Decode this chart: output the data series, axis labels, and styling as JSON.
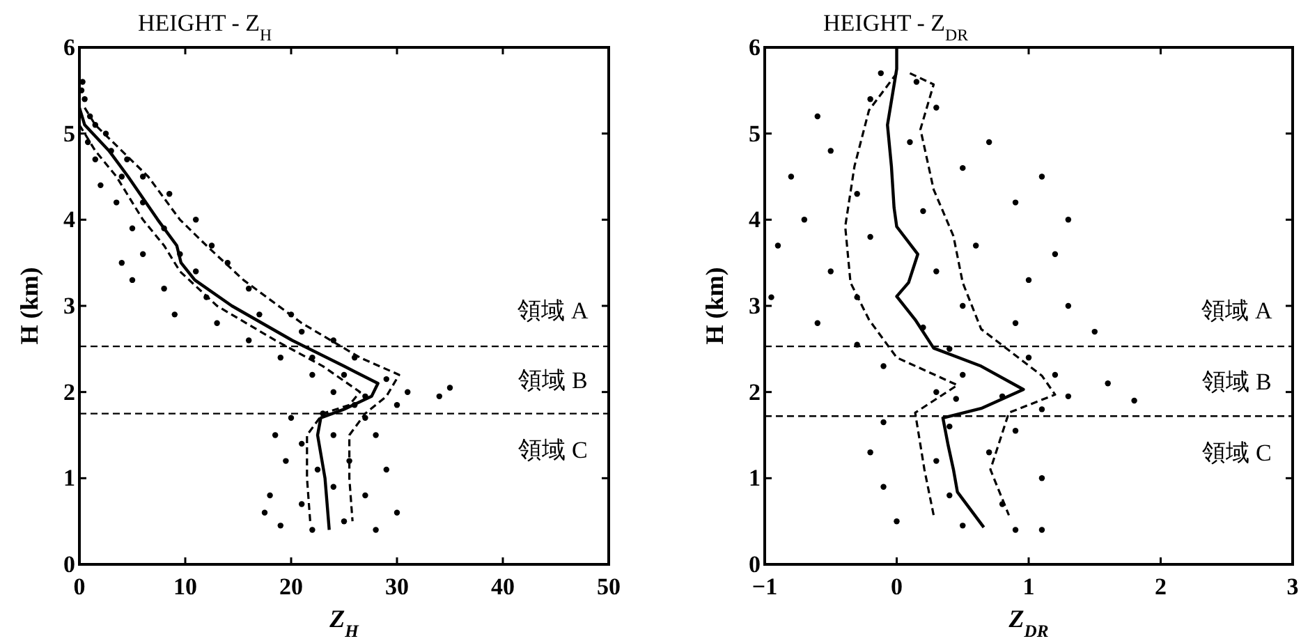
{
  "chart_data": [
    {
      "type": "scatter",
      "title": "HEIGHT - Z$_{H}$",
      "xlabel": "Z$_{H}$",
      "ylabel": "H (km)",
      "xlim": [
        0,
        50
      ],
      "ylim": [
        0,
        6
      ],
      "xticks": [
        0,
        10,
        20,
        30,
        40,
        50
      ],
      "yticks": [
        0,
        1,
        2,
        3,
        4,
        5,
        6
      ],
      "grid": false,
      "ref_lines": [
        {
          "axis": "y",
          "value": 2.53,
          "line_style": "dashed"
        },
        {
          "axis": "y",
          "value": 1.75,
          "line_style": "dashed"
        }
      ],
      "annotations": [
        "領域 A",
        "領域 B",
        "領域 C"
      ],
      "series": [
        {
          "type": "scatter",
          "color": "#000000",
          "marker": "circle",
          "x": [
            0.3,
            0.5,
            0.2,
            1,
            1.5,
            0.8,
            2.5,
            1.5,
            3,
            4.5,
            2,
            4,
            6,
            3.5,
            6,
            8.5,
            5,
            8,
            11,
            4,
            6,
            9.5,
            12.5,
            5,
            8,
            11,
            14,
            9,
            12,
            16,
            13,
            17,
            20,
            16,
            21,
            24,
            19,
            22,
            26,
            22,
            25,
            29,
            24,
            27,
            31,
            34,
            35,
            26,
            30,
            20,
            23,
            27,
            18.5,
            21,
            24,
            28,
            19.5,
            22.5,
            25.5,
            29,
            18,
            21,
            24,
            27,
            30,
            19,
            22,
            25,
            28,
            17.5
          ],
          "values": [
            5.6,
            5.4,
            5.5,
            5.2,
            5.1,
            4.9,
            5.0,
            4.7,
            4.8,
            4.7,
            4.4,
            4.5,
            4.5,
            4.2,
            4.2,
            4.3,
            3.9,
            3.9,
            4.0,
            3.5,
            3.6,
            3.6,
            3.7,
            3.3,
            3.2,
            3.4,
            3.5,
            2.9,
            3.1,
            3.2,
            2.8,
            2.9,
            2.9,
            2.6,
            2.7,
            2.6,
            2.4,
            2.4,
            2.4,
            2.2,
            2.2,
            2.15,
            2.0,
            1.95,
            2.0,
            1.95,
            2.05,
            1.85,
            1.85,
            1.7,
            1.75,
            1.7,
            1.5,
            1.4,
            1.5,
            1.5,
            1.2,
            1.1,
            1.2,
            1.1,
            0.8,
            0.7,
            0.9,
            0.8,
            0.6,
            0.45,
            0.4,
            0.5,
            0.4,
            0.6
          ]
        },
        {
          "type": "line",
          "color": "#000000",
          "marker": "none",
          "line_style": "solid",
          "x": [
            0,
            0.5,
            2.8,
            4.6,
            7.4,
            9.2,
            9.6,
            10.9,
            14.4,
            20.1,
            25,
            28.2,
            27.6,
            25,
            22.8,
            22.5,
            23.2,
            23.6
          ],
          "values": [
            5.3,
            5.1,
            4.8,
            4.5,
            4.0,
            3.7,
            3.5,
            3.3,
            3.0,
            2.6,
            2.3,
            2.1,
            1.95,
            1.8,
            1.7,
            1.5,
            1.0,
            0.4
          ]
        },
        {
          "type": "line",
          "color": "#000000",
          "marker": "none",
          "line_style": "dashed",
          "x": [
            0,
            1.5,
            3.5,
            6,
            8,
            9.5,
            13,
            18.5,
            23,
            26.5,
            25.5,
            23,
            21.5,
            21.5,
            21.8
          ],
          "values": [
            5.1,
            4.8,
            4.5,
            4.0,
            3.7,
            3.4,
            3.0,
            2.6,
            2.3,
            2.0,
            1.85,
            1.75,
            1.5,
            1.0,
            0.5
          ]
        },
        {
          "type": "line",
          "color": "#000000",
          "marker": "none",
          "line_style": "dashed",
          "x": [
            0.5,
            1.5,
            4,
            6.5,
            9.5,
            12,
            15.5,
            21,
            26.5,
            30.2,
            29,
            27,
            25.5,
            25.5,
            25.8
          ],
          "values": [
            5.3,
            5.1,
            4.8,
            4.5,
            4.0,
            3.7,
            3.3,
            2.8,
            2.4,
            2.2,
            1.95,
            1.75,
            1.5,
            1.0,
            0.5
          ]
        }
      ]
    },
    {
      "type": "scatter",
      "title": "HEIGHT - Z$_{DR}$",
      "xlabel": "Z$_{DR}$",
      "ylabel": "H (km)",
      "xlim": [
        -1,
        3
      ],
      "ylim": [
        0,
        6
      ],
      "xticks": [
        {
          "value": -1,
          "label": "−1"
        },
        0,
        1,
        2,
        3
      ],
      "yticks": [
        0,
        1,
        2,
        3,
        4,
        5,
        6
      ],
      "grid": false,
      "ref_lines": [
        {
          "axis": "y",
          "value": 2.53,
          "line_style": "dashed"
        },
        {
          "axis": "y",
          "value": 1.72,
          "line_style": "dashed"
        }
      ],
      "annotations": [
        "領域 A",
        "領域 B",
        "領域 C"
      ],
      "series": [
        {
          "type": "scatter",
          "color": "#000000",
          "marker": "circle",
          "x": [
            -0.12,
            0.15,
            -0.2,
            0.3,
            -0.6,
            0.7,
            -0.5,
            0.1,
            -0.8,
            0.5,
            1.1,
            -0.3,
            0.9,
            -0.7,
            0.2,
            1.3,
            -0.9,
            -0.2,
            0.6,
            1.2,
            -0.5,
            0.3,
            1.0,
            -0.95,
            -0.3,
            0.5,
            1.3,
            -0.6,
            0.2,
            0.9,
            1.5,
            -0.3,
            0.4,
            1.0,
            -0.1,
            0.5,
            1.2,
            1.6,
            0.3,
            0.8,
            1.3,
            1.8,
            0.45,
            1.1,
            -0.1,
            0.4,
            0.9,
            -0.2,
            0.3,
            0.7,
            1.1,
            -0.1,
            0.4,
            0.8,
            0.0,
            0.5,
            0.9,
            1.1
          ],
          "values": [
            5.7,
            5.6,
            5.4,
            5.3,
            5.2,
            4.9,
            4.8,
            4.9,
            4.5,
            4.6,
            4.5,
            4.3,
            4.2,
            4.0,
            4.1,
            4.0,
            3.7,
            3.8,
            3.7,
            3.6,
            3.4,
            3.4,
            3.3,
            3.1,
            3.1,
            3.0,
            3.0,
            2.8,
            2.75,
            2.8,
            2.7,
            2.55,
            2.5,
            2.4,
            2.3,
            2.2,
            2.2,
            2.1,
            2.0,
            1.95,
            1.95,
            1.9,
            1.92,
            1.8,
            1.65,
            1.6,
            1.55,
            1.3,
            1.2,
            1.3,
            1.0,
            0.9,
            0.8,
            0.7,
            0.5,
            0.45,
            0.4,
            0.4
          ]
        },
        {
          "type": "line",
          "color": "#000000",
          "marker": "none",
          "line_style": "solid",
          "x": [
            0,
            0,
            -0.07,
            -0.04,
            -0.02,
            0,
            0.16,
            0.09,
            0,
            0.14,
            0.28,
            0.64,
            0.96,
            0.64,
            0.35,
            0.39,
            0.43,
            0.46,
            0.66
          ],
          "values": [
            6,
            5.75,
            5.1,
            4.62,
            4.14,
            3.92,
            3.6,
            3.27,
            3.11,
            2.84,
            2.51,
            2.3,
            2.03,
            1.81,
            1.7,
            1.38,
            1.1,
            0.84,
            0.43
          ]
        },
        {
          "type": "line",
          "color": "#000000",
          "marker": "none",
          "line_style": "dashed",
          "x": [
            0,
            -0.21,
            -0.32,
            -0.39,
            -0.35,
            -0.21,
            0,
            0.46,
            0.14,
            0.21,
            0.28
          ],
          "values": [
            5.7,
            5.27,
            4.62,
            3.92,
            3.27,
            2.84,
            2.4,
            2.08,
            1.76,
            1.1,
            0.57
          ]
        },
        {
          "type": "line",
          "color": "#000000",
          "marker": "none",
          "line_style": "dashed",
          "x": [
            0.1,
            0.28,
            0.18,
            0.28,
            0.43,
            0.5,
            0.64,
            1.1,
            1.2,
            0.85,
            0.71,
            0.85
          ],
          "values": [
            5.7,
            5.57,
            5.05,
            4.35,
            3.81,
            3.27,
            2.73,
            2.19,
            1.97,
            1.76,
            1.1,
            0.57
          ]
        }
      ]
    }
  ]
}
